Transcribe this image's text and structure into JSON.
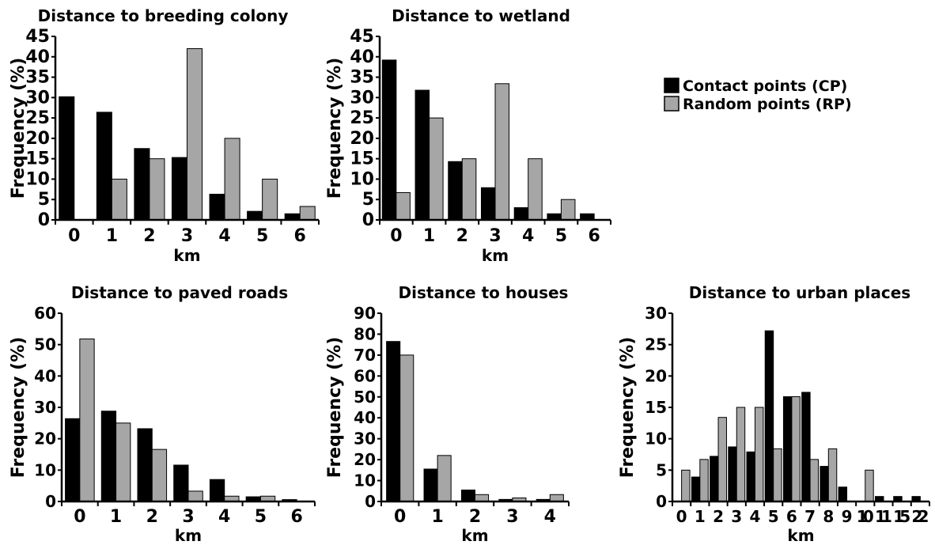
{
  "colors": {
    "cp": "#000000",
    "rp": "#a6a6a6"
  },
  "legend": {
    "cp": "Contact points (CP)",
    "rp": "Random points (RP)"
  },
  "chart_data": [
    {
      "type": "bar",
      "title": "Distance to breeding colony",
      "xlabel": "km",
      "ylabel": "Frequency (%)",
      "ylim": [
        0,
        45
      ],
      "yticks": [
        0,
        5,
        10,
        15,
        20,
        25,
        30,
        35,
        40,
        45
      ],
      "categories": [
        "0",
        "1",
        "2",
        "3",
        "4",
        "5",
        "6"
      ],
      "series": [
        {
          "name": "Contact points (CP)",
          "values": [
            30.2,
            26.4,
            17.5,
            15.3,
            6.3,
            2.1,
            1.5
          ]
        },
        {
          "name": "Random points (RP)",
          "values": [
            0,
            10,
            15,
            42,
            20,
            10,
            3.3
          ]
        }
      ]
    },
    {
      "type": "bar",
      "title": "Distance to wetland",
      "xlabel": "km",
      "ylabel": "Frequency (%)",
      "ylim": [
        0,
        45
      ],
      "yticks": [
        0,
        5,
        10,
        15,
        20,
        25,
        30,
        35,
        40,
        45
      ],
      "categories": [
        "0",
        "1",
        "2",
        "3",
        "4",
        "5",
        "6"
      ],
      "series": [
        {
          "name": "Contact points (CP)",
          "values": [
            39.2,
            31.8,
            14.3,
            7.9,
            3.0,
            1.5,
            1.5
          ]
        },
        {
          "name": "Random points (RP)",
          "values": [
            6.7,
            25,
            15,
            33.4,
            15,
            5,
            0
          ]
        }
      ]
    },
    {
      "type": "bar",
      "title": "Distance to paved roads",
      "xlabel": "km",
      "ylabel": "Frequency (%)",
      "ylim": [
        0,
        60
      ],
      "yticks": [
        0,
        10,
        20,
        30,
        40,
        50,
        60
      ],
      "categories": [
        "0",
        "1",
        "2",
        "3",
        "4",
        "5",
        "6"
      ],
      "series": [
        {
          "name": "Contact points (CP)",
          "values": [
            26.4,
            28.8,
            23.2,
            11.6,
            7.0,
            1.5,
            0.6
          ]
        },
        {
          "name": "Random points (RP)",
          "values": [
            51.8,
            25.0,
            16.6,
            3.3,
            1.7,
            1.7,
            0
          ]
        }
      ]
    },
    {
      "type": "bar",
      "title": "Distance to houses",
      "xlabel": "km",
      "ylabel": "Frequency (%)",
      "ylim": [
        0,
        90
      ],
      "yticks": [
        0,
        10,
        20,
        30,
        40,
        50,
        60,
        70,
        80,
        90
      ],
      "categories": [
        "0",
        "1",
        "2",
        "3",
        "4"
      ],
      "series": [
        {
          "name": "Contact points (CP)",
          "values": [
            76.5,
            15.5,
            5.5,
            1.0,
            1.0
          ]
        },
        {
          "name": "Random points (RP)",
          "values": [
            70.0,
            22.0,
            3.3,
            1.7,
            3.3
          ]
        }
      ]
    },
    {
      "type": "bar",
      "title": "Distance to urban places",
      "xlabel": "km",
      "ylabel": "Frequency (%)",
      "ylim": [
        0,
        30
      ],
      "yticks": [
        0,
        5,
        10,
        15,
        20,
        25,
        30
      ],
      "categories": [
        "0",
        "1",
        "2",
        "3",
        "4",
        "5",
        "6",
        "7",
        "8",
        "9",
        "10",
        "11",
        "15",
        "22"
      ],
      "series": [
        {
          "name": "Contact points (CP)",
          "values": [
            0,
            3.9,
            7.2,
            8.7,
            7.9,
            27.2,
            16.7,
            17.4,
            5.6,
            2.3,
            0,
            0.8,
            0.8,
            0.8
          ]
        },
        {
          "name": "Random points (RP)",
          "values": [
            5.0,
            6.7,
            13.4,
            15.0,
            15.0,
            8.4,
            16.7,
            6.7,
            8.4,
            0,
            5.0,
            0,
            0,
            0
          ]
        }
      ]
    }
  ]
}
